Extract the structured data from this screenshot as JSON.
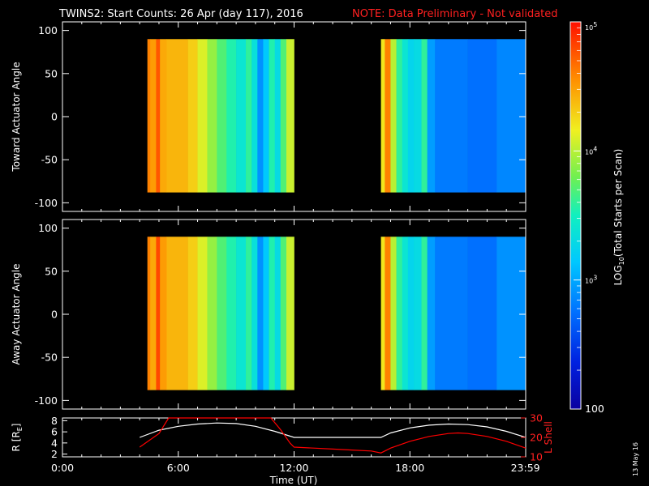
{
  "header": {
    "title": "TWINS2: Start Counts: 26 Apr (day 117), 2016",
    "note": "NOTE: Data Preliminary - Not validated"
  },
  "footer": {
    "date_stamp": "13 May 16"
  },
  "colors": {
    "background": "#000000",
    "axes": "#ffffff",
    "note": "#ff2020",
    "lshell": "#ff0000",
    "radius": "#ffffff"
  },
  "colorbar": {
    "colormap": "rainbow (blue-cyan-green-yellow-orange-red)",
    "scale": "log",
    "range": [
      100,
      100000
    ],
    "label": "LOG10(Total Starts per Scan)",
    "label_main": "LOG",
    "label_sub": "10",
    "label_rest": "(Total Starts per Scan)",
    "ticks": [
      {
        "value": 100,
        "label": "100",
        "base": "",
        "exp": ""
      },
      {
        "value": 1000,
        "label": "10^3",
        "base": "10",
        "exp": "3"
      },
      {
        "value": 10000,
        "label": "10^4",
        "base": "10",
        "exp": "4"
      },
      {
        "value": 100000,
        "label": "10^5",
        "base": "10",
        "exp": "5"
      }
    ]
  },
  "chart_data": [
    {
      "type": "heatmap",
      "id": "toward",
      "ylabel": "Toward Actuator Angle",
      "xlim_hours": [
        0,
        24
      ],
      "ylim": [
        -110,
        110
      ],
      "yticks": [
        100,
        50,
        0,
        -50,
        -100
      ],
      "ytick_labels": [
        "100",
        "50",
        "0",
        "-50",
        "-100"
      ],
      "angle_range": [
        -88,
        90
      ],
      "data_intervals_hours": [
        [
          4.4,
          12.0
        ],
        [
          16.5,
          24.0
        ]
      ],
      "columns_log10_counts": [
        {
          "t0": 4.4,
          "t1": 4.55,
          "v": 4.6
        },
        {
          "t0": 4.55,
          "t1": 4.85,
          "v": 4.5
        },
        {
          "t0": 4.85,
          "t1": 5.05,
          "v": 4.75
        },
        {
          "t0": 5.05,
          "t1": 5.4,
          "v": 4.45
        },
        {
          "t0": 5.4,
          "t1": 6.5,
          "v": 4.4
        },
        {
          "t0": 6.5,
          "t1": 7.0,
          "v": 4.3
        },
        {
          "t0": 7.0,
          "t1": 7.5,
          "v": 4.1
        },
        {
          "t0": 7.5,
          "t1": 8.0,
          "v": 3.9
        },
        {
          "t0": 8.0,
          "t1": 8.5,
          "v": 3.7
        },
        {
          "t0": 8.5,
          "t1": 9.0,
          "v": 3.55
        },
        {
          "t0": 9.0,
          "t1": 9.5,
          "v": 3.4
        },
        {
          "t0": 9.5,
          "t1": 9.8,
          "v": 3.6
        },
        {
          "t0": 9.8,
          "t1": 10.1,
          "v": 3.35
        },
        {
          "t0": 10.1,
          "t1": 10.4,
          "v": 2.9
        },
        {
          "t0": 10.4,
          "t1": 10.7,
          "v": 3.15
        },
        {
          "t0": 10.7,
          "t1": 11.0,
          "v": 3.55
        },
        {
          "t0": 11.0,
          "t1": 11.3,
          "v": 3.3
        },
        {
          "t0": 11.3,
          "t1": 11.6,
          "v": 3.7
        },
        {
          "t0": 11.6,
          "t1": 12.0,
          "v": 4.05
        },
        {
          "t0": 16.5,
          "t1": 16.7,
          "v": 4.2
        },
        {
          "t0": 16.7,
          "t1": 17.0,
          "v": 4.6
        },
        {
          "t0": 17.0,
          "t1": 17.3,
          "v": 4.0
        },
        {
          "t0": 17.3,
          "t1": 17.6,
          "v": 3.6
        },
        {
          "t0": 17.6,
          "t1": 17.9,
          "v": 3.4
        },
        {
          "t0": 17.9,
          "t1": 18.2,
          "v": 3.25
        },
        {
          "t0": 18.2,
          "t1": 18.6,
          "v": 3.3
        },
        {
          "t0": 18.6,
          "t1": 18.9,
          "v": 3.6
        },
        {
          "t0": 18.9,
          "t1": 19.3,
          "v": 2.95
        },
        {
          "t0": 19.3,
          "t1": 21.0,
          "v": 2.8
        },
        {
          "t0": 21.0,
          "t1": 22.5,
          "v": 2.75
        },
        {
          "t0": 22.5,
          "t1": 24.0,
          "v": 2.85
        }
      ]
    },
    {
      "type": "heatmap",
      "id": "away",
      "ylabel": "Away Actuator Angle",
      "xlim_hours": [
        0,
        24
      ],
      "ylim": [
        -110,
        110
      ],
      "yticks": [
        100,
        50,
        0,
        -50,
        -100
      ],
      "ytick_labels": [
        "100",
        "50",
        "0",
        "-50",
        "-100"
      ],
      "angle_range": [
        -88,
        90
      ],
      "data_intervals_hours": [
        [
          4.4,
          12.0
        ],
        [
          16.5,
          24.0
        ]
      ],
      "columns_log10_counts": [
        {
          "t0": 4.4,
          "t1": 4.55,
          "v": 4.6
        },
        {
          "t0": 4.55,
          "t1": 4.85,
          "v": 4.45
        },
        {
          "t0": 4.85,
          "t1": 5.05,
          "v": 4.8
        },
        {
          "t0": 5.05,
          "t1": 5.4,
          "v": 4.5
        },
        {
          "t0": 5.4,
          "t1": 6.5,
          "v": 4.4
        },
        {
          "t0": 6.5,
          "t1": 7.0,
          "v": 4.3
        },
        {
          "t0": 7.0,
          "t1": 7.5,
          "v": 4.1
        },
        {
          "t0": 7.5,
          "t1": 8.0,
          "v": 3.9
        },
        {
          "t0": 8.0,
          "t1": 8.5,
          "v": 3.7
        },
        {
          "t0": 8.5,
          "t1": 9.0,
          "v": 3.55
        },
        {
          "t0": 9.0,
          "t1": 9.5,
          "v": 3.4
        },
        {
          "t0": 9.5,
          "t1": 9.8,
          "v": 3.6
        },
        {
          "t0": 9.8,
          "t1": 10.1,
          "v": 3.35
        },
        {
          "t0": 10.1,
          "t1": 10.4,
          "v": 2.9
        },
        {
          "t0": 10.4,
          "t1": 10.7,
          "v": 3.15
        },
        {
          "t0": 10.7,
          "t1": 11.0,
          "v": 3.55
        },
        {
          "t0": 11.0,
          "t1": 11.3,
          "v": 3.3
        },
        {
          "t0": 11.3,
          "t1": 11.6,
          "v": 3.7
        },
        {
          "t0": 11.6,
          "t1": 12.0,
          "v": 4.05
        },
        {
          "t0": 16.5,
          "t1": 16.7,
          "v": 4.2
        },
        {
          "t0": 16.7,
          "t1": 17.0,
          "v": 4.6
        },
        {
          "t0": 17.0,
          "t1": 17.3,
          "v": 4.0
        },
        {
          "t0": 17.3,
          "t1": 17.6,
          "v": 3.6
        },
        {
          "t0": 17.6,
          "t1": 17.9,
          "v": 3.4
        },
        {
          "t0": 17.9,
          "t1": 18.2,
          "v": 3.25
        },
        {
          "t0": 18.2,
          "t1": 18.6,
          "v": 3.3
        },
        {
          "t0": 18.6,
          "t1": 18.9,
          "v": 3.6
        },
        {
          "t0": 18.9,
          "t1": 19.3,
          "v": 2.95
        },
        {
          "t0": 19.3,
          "t1": 21.0,
          "v": 2.8
        },
        {
          "t0": 21.0,
          "t1": 22.5,
          "v": 2.75
        },
        {
          "t0": 22.5,
          "t1": 24.0,
          "v": 2.9
        }
      ]
    },
    {
      "type": "line",
      "id": "orbit",
      "xlabel": "Time (UT)",
      "xlim_hours": [
        0,
        24
      ],
      "xticks_hours": [
        0,
        6,
        12,
        18,
        23.983
      ],
      "xtick_labels": [
        "0:00",
        "6:00",
        "12:00",
        "18:00",
        "23:59"
      ],
      "ylabel_left": "R [RE]",
      "ylabel_left_main": "R [R",
      "ylabel_left_sub": "E",
      "ylabel_left_end": "]",
      "ylim_left": [
        1.5,
        8.5
      ],
      "yticks_left": [
        2,
        4,
        6,
        8
      ],
      "ylabel_right": "L Shell",
      "ylim_right": [
        10,
        30
      ],
      "yticks_right": [
        10,
        20,
        30
      ],
      "series": [
        {
          "axis": "left",
          "x": [
            4.0,
            5.0,
            6.0,
            7.0,
            8.0,
            9.0,
            10.0,
            11.0,
            12.0,
            13.0,
            14.0,
            15.0,
            16.0,
            16.5,
            17.0,
            18.0,
            19.0,
            20.0,
            21.0,
            22.0,
            23.0,
            24.0
          ],
          "y": [
            5.0,
            6.3,
            7.0,
            7.4,
            7.6,
            7.5,
            7.0,
            6.1,
            5.0,
            5.0,
            5.0,
            5.0,
            5.0,
            5.0,
            5.8,
            6.7,
            7.2,
            7.4,
            7.3,
            6.9,
            6.1,
            5.0
          ]
        },
        {
          "axis": "right",
          "x": [
            4.0,
            5.0,
            5.5,
            10.8,
            11.3,
            11.8,
            12.0,
            13.0,
            14.0,
            15.0,
            16.0,
            16.5,
            17.0,
            18.0,
            19.0,
            20.0,
            20.5,
            21.0,
            22.0,
            23.0,
            24.0
          ],
          "y": [
            15.0,
            22.0,
            30.0,
            30.0,
            24.0,
            17.0,
            15.0,
            14.5,
            14.0,
            13.5,
            13.0,
            12.0,
            14.5,
            18.0,
            20.5,
            22.0,
            22.3,
            22.0,
            20.5,
            18.0,
            14.5
          ]
        }
      ]
    }
  ]
}
